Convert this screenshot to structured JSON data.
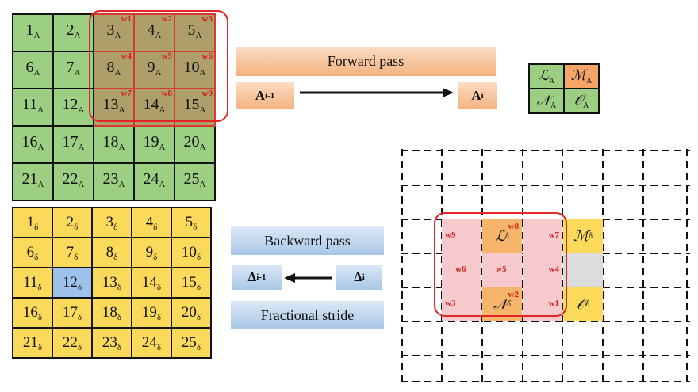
{
  "forward_grid": [
    [
      "1",
      "2",
      "3",
      "4",
      "5"
    ],
    [
      "6",
      "7",
      "8",
      "9",
      "10"
    ],
    [
      "11",
      "12",
      "13",
      "14",
      "15"
    ],
    [
      "16",
      "17",
      "18",
      "19",
      "20"
    ],
    [
      "21",
      "22",
      "23",
      "24",
      "25"
    ]
  ],
  "forward_subscript": "A",
  "weights": [
    "w1",
    "w2",
    "w3",
    "w4",
    "w5",
    "w6",
    "w7",
    "w8",
    "w9"
  ],
  "backward_grid": [
    [
      "1",
      "2",
      "3",
      "4",
      "5"
    ],
    [
      "6",
      "7",
      "8",
      "9",
      "10"
    ],
    [
      "11",
      "12",
      "13",
      "14",
      "15"
    ],
    [
      "16",
      "17",
      "18",
      "19",
      "20"
    ],
    [
      "21",
      "22",
      "23",
      "24",
      "25"
    ]
  ],
  "backward_subscript": "δ",
  "labels": {
    "forward_pass": "Forward pass",
    "backward_pass": "Backward pass",
    "fractional_stride": "Fractional stride",
    "a_prev": "A",
    "a_prev_sub": "i-1",
    "a_cur": "A",
    "a_cur_sub": "i",
    "d_prev": "Δ",
    "d_prev_sub": "i-1",
    "d_cur": "Δ",
    "d_cur_sub": "i"
  },
  "output_grid": [
    [
      {
        "sym": "ℒ",
        "sub": "A",
        "color": "#9ccf82"
      },
      {
        "sym": "ℳ",
        "sub": "A",
        "color": "#f7a469"
      }
    ],
    [
      {
        "sym": "𝒩",
        "sub": "A",
        "color": "#9ccf82"
      },
      {
        "sym": "𝒪",
        "sub": "A",
        "color": "#9ccf82"
      }
    ]
  ],
  "delta_symbols": {
    "L": "ℒ",
    "M": "ℳ",
    "N": "𝒩",
    "O": "𝒪",
    "sub": "δ"
  },
  "colors": {
    "green": "#9ccf82",
    "yellow": "#fbd95a",
    "highlight_blue": "#9ec2ec",
    "kernel_shade": "#ad9e6a",
    "red": "#e02626",
    "pink": "#f6c9cd",
    "orange": "#f7b46b"
  }
}
